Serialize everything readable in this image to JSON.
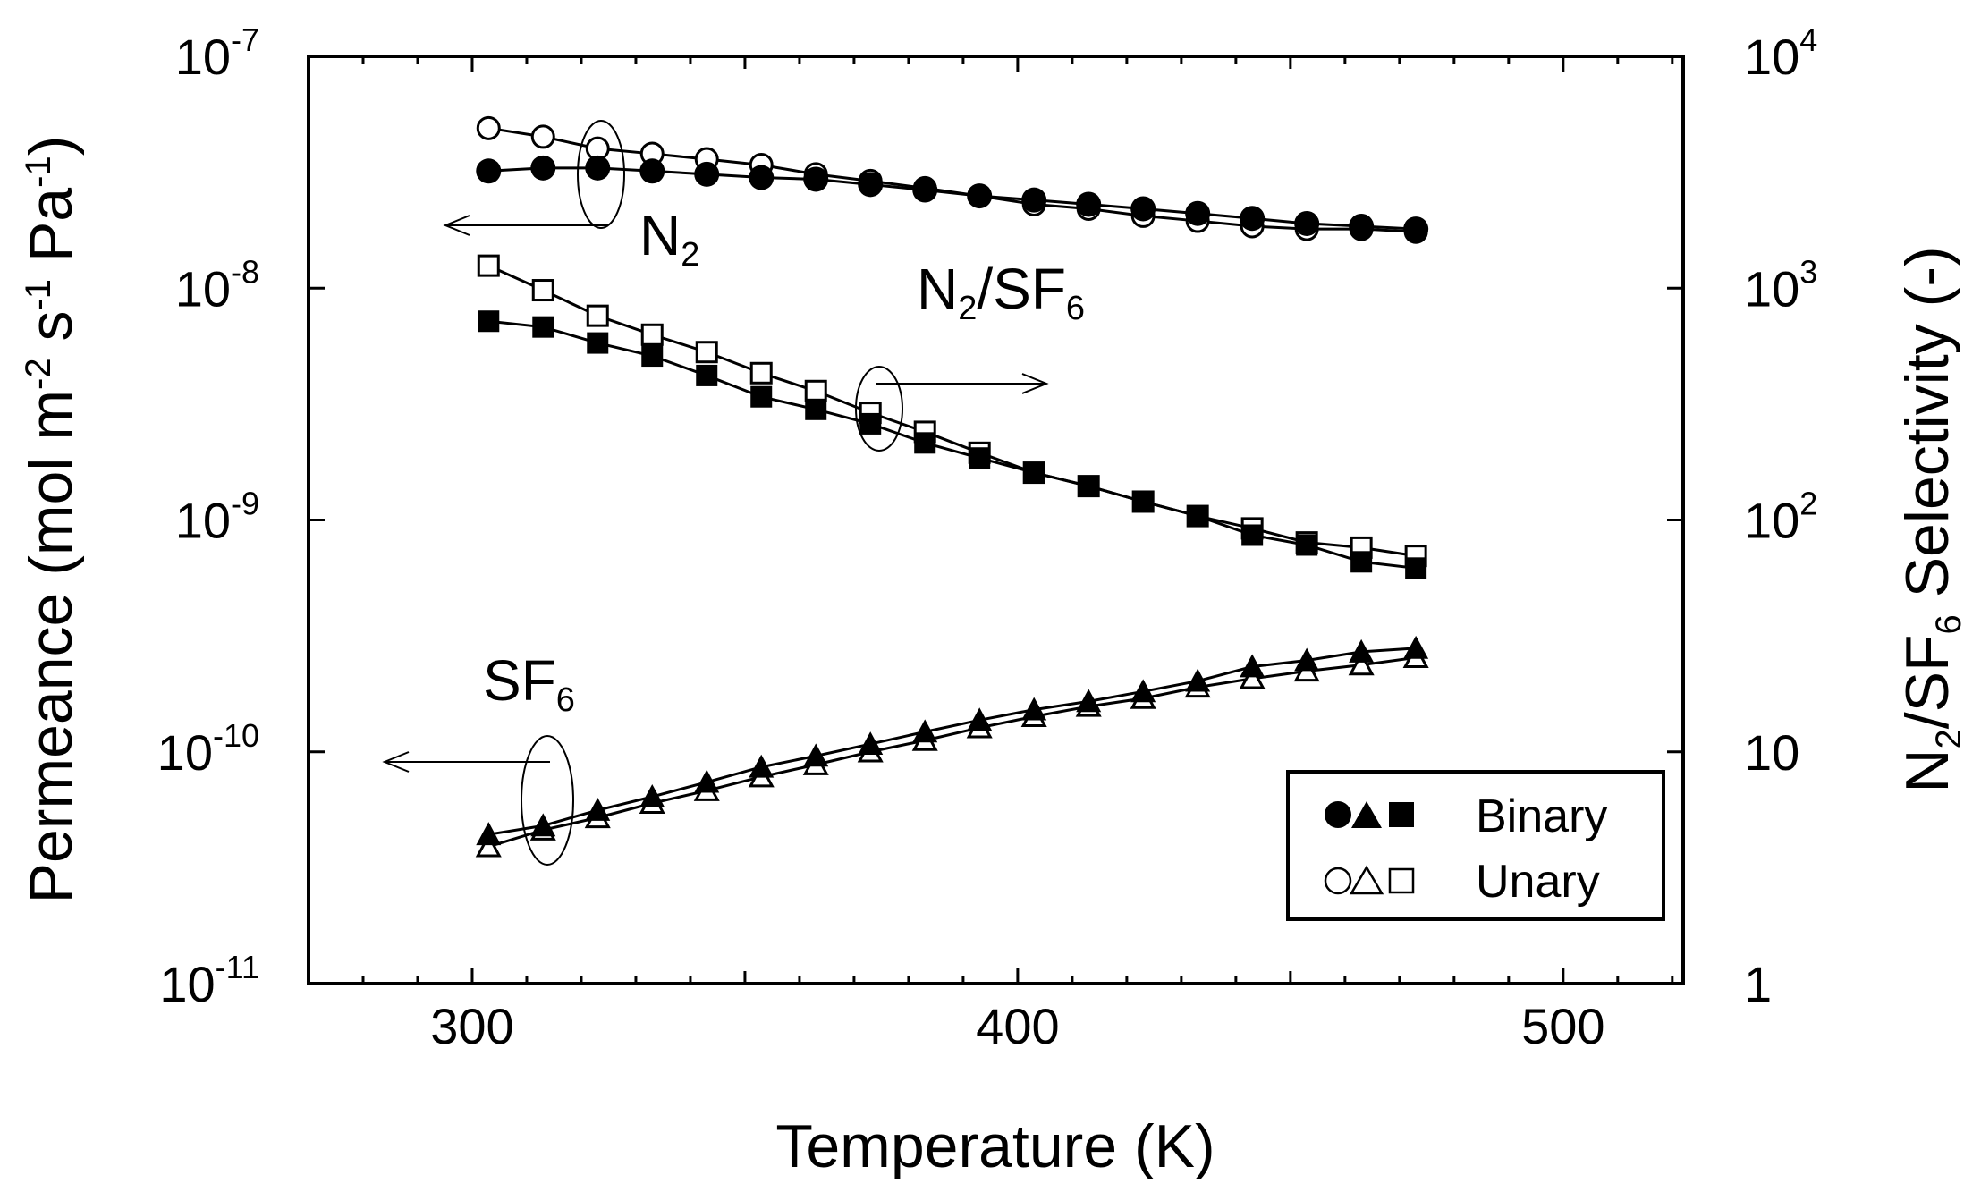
{
  "chart_data": {
    "type": "line",
    "xlabel": "Temperature (K)",
    "xlim": [
      270,
      522
    ],
    "x_ticks": [
      {
        "value": 300,
        "label": "300"
      },
      {
        "value": 400,
        "label": "400"
      },
      {
        "value": 500,
        "label": "500"
      }
    ],
    "x_minor_step": 10,
    "ylabel_left": {
      "main": "Permeance (mol m",
      "sup1": "-2",
      "mid1": " s",
      "sup2": "-1",
      "mid2": " Pa",
      "sup3": "-1",
      "end": ")"
    },
    "ylim_left": [
      1e-11,
      1e-07
    ],
    "y_ticks_left": [
      {
        "value": 1e-11,
        "base": "10",
        "exp": "-11"
      },
      {
        "value": 1e-10,
        "base": "10",
        "exp": "-10"
      },
      {
        "value": 1e-09,
        "base": "10",
        "exp": "-9"
      },
      {
        "value": 1e-08,
        "base": "10",
        "exp": "-8"
      },
      {
        "value": 1e-07,
        "base": "10",
        "exp": "-7"
      }
    ],
    "ylabel_right": {
      "pre": "N",
      "sub1": "2",
      "mid": "/SF",
      "sub2": "6",
      "end": " Selectivity (-)"
    },
    "ylim_right": [
      1,
      10000
    ],
    "y_ticks_right": [
      {
        "value": 1,
        "base": "1",
        "exp": ""
      },
      {
        "value": 10,
        "base": "10",
        "exp": ""
      },
      {
        "value": 100,
        "base": "10",
        "exp": "2"
      },
      {
        "value": 1000,
        "base": "10",
        "exp": "3"
      },
      {
        "value": 10000,
        "base": "10",
        "exp": "4"
      }
    ],
    "x": [
      303,
      313,
      323,
      333,
      343,
      353,
      363,
      373,
      383,
      393,
      403,
      413,
      423,
      433,
      443,
      453,
      463,
      473
    ],
    "series": [
      {
        "name": "N2 Binary",
        "axis": "left",
        "marker": "circle",
        "filled": true,
        "values": [
          3.2e-08,
          3.3e-08,
          3.3e-08,
          3.2e-08,
          3.1e-08,
          3e-08,
          2.95e-08,
          2.8e-08,
          2.65e-08,
          2.5e-08,
          2.4e-08,
          2.3e-08,
          2.2e-08,
          2.1e-08,
          2e-08,
          1.9e-08,
          1.85e-08,
          1.8e-08
        ]
      },
      {
        "name": "N2 Unary",
        "axis": "left",
        "marker": "circle",
        "filled": false,
        "values": [
          4.9e-08,
          4.5e-08,
          4e-08,
          3.8e-08,
          3.6e-08,
          3.4e-08,
          3.1e-08,
          2.9e-08,
          2.7e-08,
          2.5e-08,
          2.3e-08,
          2.2e-08,
          2.05e-08,
          1.95e-08,
          1.85e-08,
          1.8e-08,
          1.8e-08,
          1.75e-08
        ]
      },
      {
        "name": "SF6 Binary",
        "axis": "left",
        "marker": "triangle",
        "filled": true,
        "values": [
          4.4e-11,
          4.8e-11,
          5.6e-11,
          6.4e-11,
          7.4e-11,
          8.6e-11,
          9.6e-11,
          1.08e-10,
          1.22e-10,
          1.37e-10,
          1.52e-10,
          1.65e-10,
          1.82e-10,
          2.02e-10,
          2.33e-10,
          2.48e-10,
          2.7e-10,
          2.8e-10
        ]
      },
      {
        "name": "SF6 Unary",
        "axis": "left",
        "marker": "triangle",
        "filled": false,
        "values": [
          3.9e-11,
          4.6e-11,
          5.2e-11,
          6e-11,
          6.8e-11,
          7.8e-11,
          8.8e-11,
          1e-10,
          1.12e-10,
          1.27e-10,
          1.42e-10,
          1.57e-10,
          1.7e-10,
          1.9e-10,
          2.07e-10,
          2.23e-10,
          2.37e-10,
          2.55e-10
        ]
      },
      {
        "name": "N2/SF6 Binary",
        "axis": "right",
        "marker": "square",
        "filled": true,
        "values": [
          720,
          680,
          580,
          510,
          420,
          340,
          300,
          260,
          215,
          185,
          160,
          140,
          120,
          104,
          86,
          78,
          66,
          62
        ]
      },
      {
        "name": "N2/SF6 Unary",
        "axis": "right",
        "marker": "square",
        "filled": false,
        "values": [
          1250,
          980,
          760,
          630,
          530,
          430,
          360,
          290,
          240,
          195,
          160,
          140,
          120,
          104,
          92,
          80,
          76,
          70
        ]
      }
    ],
    "annotations": [
      {
        "pre": "N",
        "sub": "2",
        "post": "",
        "arrow": "left"
      },
      {
        "pre": "N",
        "sub": "2",
        "post": "/SF",
        "sub2": "6",
        "arrow": "right"
      },
      {
        "pre": "SF",
        "sub": "6",
        "post": "",
        "arrow": "left"
      }
    ],
    "legend": {
      "position": "bottom-right",
      "entries": [
        {
          "symbols": "filled",
          "label": "Binary"
        },
        {
          "symbols": "open",
          "label": "Unary"
        }
      ]
    }
  }
}
